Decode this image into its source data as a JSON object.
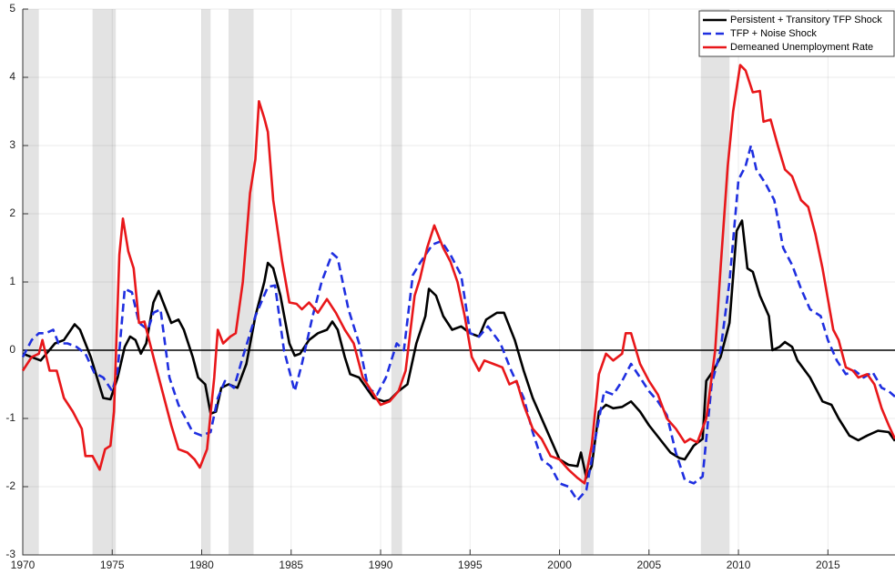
{
  "chart_data": {
    "type": "line",
    "xlim": [
      1970,
      2018.75
    ],
    "ylim": [
      -3,
      5
    ],
    "xticks": [
      1970,
      1975,
      1980,
      1985,
      1990,
      1995,
      2000,
      2005,
      2010,
      2015
    ],
    "yticks": [
      -3,
      -2,
      -1,
      0,
      1,
      2,
      3,
      4,
      5
    ],
    "grid": true,
    "reference_line": 0,
    "legend": "upper right",
    "shade_color": "#e3e3e3",
    "recessions": [
      [
        1970.0,
        1970.9
      ],
      [
        1973.9,
        1975.2
      ],
      [
        1980.0,
        1980.5
      ],
      [
        1981.5,
        1982.9
      ],
      [
        1990.6,
        1991.2
      ],
      [
        2001.2,
        2001.9
      ],
      [
        2007.9,
        2009.5
      ]
    ],
    "series": [
      {
        "name": "Persistent + Transitory TFP Shock",
        "color": "#000000",
        "dash": "solid",
        "x": [
          1970,
          1971,
          1971.8,
          1972.3,
          1972.9,
          1973.2,
          1973.8,
          1974.5,
          1974.9,
          1975.3,
          1975.7,
          1976,
          1976.3,
          1976.6,
          1976.9,
          1977.3,
          1977.6,
          1978,
          1978.3,
          1978.7,
          1979,
          1979.5,
          1979.8,
          1980.2,
          1980.5,
          1980.8,
          1981.1,
          1981.5,
          1982,
          1982.5,
          1983,
          1983.5,
          1983.7,
          1984,
          1984.4,
          1984.9,
          1985.2,
          1985.5,
          1986,
          1986.5,
          1987,
          1987.3,
          1987.6,
          1988,
          1988.3,
          1988.8,
          1989.2,
          1989.6,
          1990.2,
          1990.5,
          1991,
          1991.5,
          1992,
          1992.5,
          1992.7,
          1993.1,
          1993.5,
          1994,
          1994.5,
          1995,
          1995.5,
          1995.9,
          1996.5,
          1996.9,
          1997.5,
          1998,
          1998.5,
          1999,
          1999.5,
          2000,
          2000.5,
          2001,
          2001.2,
          2001.5,
          2001.8,
          2002.2,
          2002.6,
          2003,
          2003.5,
          2004,
          2004.5,
          2005,
          2005.6,
          2006.2,
          2006.7,
          2007,
          2007.5,
          2008,
          2008.2,
          2008.6,
          2009,
          2009.5,
          2009.9,
          2010.2,
          2010.5,
          2010.8,
          2011.2,
          2011.7,
          2011.9,
          2012.3,
          2012.6,
          2013,
          2013.3,
          2014,
          2014.7,
          2015.2,
          2015.6,
          2016.2,
          2016.7,
          2017.2,
          2017.8,
          2018.4,
          2018.75
        ],
        "values": [
          -0.05,
          -0.15,
          0.1,
          0.15,
          0.38,
          0.3,
          -0.1,
          -0.7,
          -0.72,
          -0.4,
          0.05,
          0.2,
          0.15,
          -0.05,
          0.1,
          0.7,
          0.87,
          0.6,
          0.4,
          0.45,
          0.3,
          -0.1,
          -0.4,
          -0.5,
          -0.93,
          -0.9,
          -0.55,
          -0.5,
          -0.55,
          -0.2,
          0.5,
          1.0,
          1.28,
          1.2,
          0.8,
          0.1,
          -0.08,
          -0.05,
          0.15,
          0.25,
          0.3,
          0.42,
          0.3,
          -0.1,
          -0.35,
          -0.4,
          -0.55,
          -0.7,
          -0.75,
          -0.73,
          -0.6,
          -0.5,
          0.1,
          0.5,
          0.9,
          0.8,
          0.5,
          0.3,
          0.35,
          0.25,
          0.2,
          0.45,
          0.55,
          0.55,
          0.15,
          -0.3,
          -0.7,
          -1.0,
          -1.3,
          -1.6,
          -1.68,
          -1.7,
          -1.5,
          -1.87,
          -1.7,
          -0.9,
          -0.8,
          -0.85,
          -0.83,
          -0.75,
          -0.9,
          -1.1,
          -1.3,
          -1.5,
          -1.58,
          -1.6,
          -1.4,
          -1.3,
          -0.45,
          -0.3,
          -0.1,
          0.4,
          1.75,
          1.9,
          1.2,
          1.15,
          0.8,
          0.5,
          0.0,
          0.05,
          0.12,
          0.05,
          -0.15,
          -0.4,
          -0.75,
          -0.8,
          -1.0,
          -1.25,
          -1.32,
          -1.25,
          -1.18,
          -1.2,
          -1.33
        ]
      },
      {
        "name": "TFP + Noise Shock",
        "color": "#1f2fe0",
        "dash": "dashed",
        "x": [
          1970,
          1970.5,
          1970.9,
          1971.3,
          1971.7,
          1972,
          1972.5,
          1973,
          1973.5,
          1974,
          1974.5,
          1975,
          1975.3,
          1975.7,
          1976.1,
          1976.5,
          1977,
          1977.3,
          1977.7,
          1978.2,
          1978.7,
          1979.5,
          1980,
          1980.5,
          1980.9,
          1981.3,
          1981.8,
          1982.3,
          1983,
          1983.7,
          1984.1,
          1984.6,
          1985.2,
          1985.6,
          1986.2,
          1986.7,
          1987.3,
          1987.6,
          1988.2,
          1988.8,
          1989.3,
          1989.8,
          1990.3,
          1990.9,
          1991.3,
          1991.8,
          1992.2,
          1992.9,
          1993.4,
          1993.9,
          1994.5,
          1995,
          1995.5,
          1996,
          1996.7,
          1997.3,
          1998,
          1998.5,
          1999,
          1999.5,
          2000,
          2000.5,
          2001,
          2001.5,
          2002,
          2002.5,
          2003,
          2003.5,
          2004,
          2004.5,
          2005,
          2005.5,
          2006,
          2006.5,
          2007,
          2007.5,
          2008,
          2008.5,
          2009,
          2009.5,
          2010,
          2010.4,
          2010.7,
          2011,
          2011.5,
          2012,
          2012.5,
          2013,
          2013.5,
          2014,
          2014.6,
          2015,
          2015.5,
          2016,
          2016.5,
          2017,
          2017.5,
          2018,
          2018.4,
          2018.75
        ],
        "values": [
          -0.1,
          0.15,
          0.25,
          0.25,
          0.3,
          0.1,
          0.1,
          0.05,
          -0.05,
          -0.33,
          -0.4,
          -0.6,
          -0.3,
          0.9,
          0.85,
          0.4,
          0.3,
          0.55,
          0.6,
          -0.4,
          -0.8,
          -1.2,
          -1.25,
          -1.2,
          -0.7,
          -0.45,
          -0.55,
          -0.1,
          0.5,
          0.93,
          0.95,
          0.0,
          -0.6,
          -0.2,
          0.5,
          1.0,
          1.42,
          1.35,
          0.6,
          0.1,
          -0.55,
          -0.65,
          -0.4,
          0.1,
          0.0,
          1.1,
          1.28,
          1.55,
          1.6,
          1.4,
          1.1,
          0.25,
          0.2,
          0.35,
          0.1,
          -0.3,
          -0.7,
          -1.2,
          -1.6,
          -1.7,
          -1.95,
          -2.0,
          -2.2,
          -2.05,
          -1.3,
          -0.6,
          -0.65,
          -0.45,
          -0.2,
          -0.4,
          -0.6,
          -0.75,
          -0.95,
          -1.5,
          -1.9,
          -1.95,
          -1.85,
          -0.5,
          0.0,
          1.0,
          2.5,
          2.7,
          3.0,
          2.65,
          2.45,
          2.2,
          1.5,
          1.25,
          0.9,
          0.6,
          0.5,
          0.15,
          -0.15,
          -0.35,
          -0.3,
          -0.4,
          -0.32,
          -0.55,
          -0.6,
          -0.68
        ]
      },
      {
        "name": "Demeaned Unemployment Rate",
        "color": "#e8171a",
        "dash": "solid",
        "x": [
          1970,
          1970.5,
          1970.9,
          1971.1,
          1971.5,
          1971.9,
          1972.3,
          1972.8,
          1973.3,
          1973.5,
          1973.9,
          1974.3,
          1974.6,
          1974.9,
          1975.1,
          1975.4,
          1975.6,
          1975.9,
          1976.2,
          1976.5,
          1976.8,
          1977.3,
          1977.8,
          1978.3,
          1978.7,
          1979.2,
          1979.6,
          1979.9,
          1980.3,
          1980.7,
          1980.9,
          1981.2,
          1981.6,
          1981.9,
          1982.3,
          1982.7,
          1983,
          1983.2,
          1983.5,
          1983.7,
          1984,
          1984.5,
          1984.9,
          1985.3,
          1985.6,
          1986,
          1986.5,
          1987,
          1987.5,
          1988,
          1988.5,
          1989,
          1989.5,
          1990,
          1990.5,
          1991,
          1991.4,
          1991.9,
          1992.2,
          1992.6,
          1993,
          1993.5,
          1993.9,
          1994.3,
          1994.7,
          1995.1,
          1995.5,
          1995.8,
          1996.3,
          1996.8,
          1997.2,
          1997.6,
          1998,
          1998.5,
          1999,
          1999.5,
          2000,
          2000.5,
          2001,
          2001.4,
          2001.8,
          2002.2,
          2002.6,
          2003,
          2003.5,
          2003.7,
          2004,
          2004.5,
          2005,
          2005.5,
          2006,
          2006.5,
          2007,
          2007.3,
          2007.7,
          2008.2,
          2008.7,
          2009,
          2009.4,
          2009.7,
          2010.1,
          2010.4,
          2010.8,
          2011.2,
          2011.4,
          2011.8,
          2012.2,
          2012.6,
          2013,
          2013.5,
          2013.9,
          2014.3,
          2014.7,
          2015,
          2015.3,
          2015.6,
          2016,
          2016.4,
          2016.7,
          2017.2,
          2017.6,
          2018,
          2018.4,
          2018.75
        ],
        "values": [
          -0.3,
          -0.1,
          -0.05,
          0.15,
          -0.3,
          -0.3,
          -0.7,
          -0.9,
          -1.15,
          -1.55,
          -1.55,
          -1.75,
          -1.45,
          -1.4,
          -0.9,
          1.4,
          1.93,
          1.45,
          1.2,
          0.4,
          0.42,
          -0.1,
          -0.6,
          -1.1,
          -1.45,
          -1.5,
          -1.6,
          -1.72,
          -1.45,
          -0.4,
          0.3,
          0.1,
          0.2,
          0.25,
          1.0,
          2.3,
          2.8,
          3.65,
          3.4,
          3.2,
          2.2,
          1.3,
          0.7,
          0.68,
          0.6,
          0.7,
          0.55,
          0.75,
          0.55,
          0.3,
          0.1,
          -0.4,
          -0.6,
          -0.8,
          -0.75,
          -0.6,
          -0.3,
          0.8,
          1.05,
          1.5,
          1.83,
          1.5,
          1.3,
          1.0,
          0.5,
          -0.1,
          -0.3,
          -0.15,
          -0.2,
          -0.25,
          -0.5,
          -0.45,
          -0.8,
          -1.15,
          -1.3,
          -1.55,
          -1.6,
          -1.75,
          -1.87,
          -1.95,
          -1.4,
          -0.35,
          -0.05,
          -0.15,
          -0.05,
          0.25,
          0.25,
          -0.2,
          -0.45,
          -0.65,
          -1.0,
          -1.15,
          -1.35,
          -1.3,
          -1.35,
          -1.0,
          0.0,
          1.2,
          2.7,
          3.5,
          4.18,
          4.1,
          3.78,
          3.8,
          3.35,
          3.38,
          3.0,
          2.65,
          2.55,
          2.2,
          2.1,
          1.7,
          1.2,
          0.75,
          0.3,
          0.15,
          -0.25,
          -0.3,
          -0.4,
          -0.35,
          -0.5,
          -0.85,
          -1.1,
          -1.3
        ]
      }
    ]
  }
}
